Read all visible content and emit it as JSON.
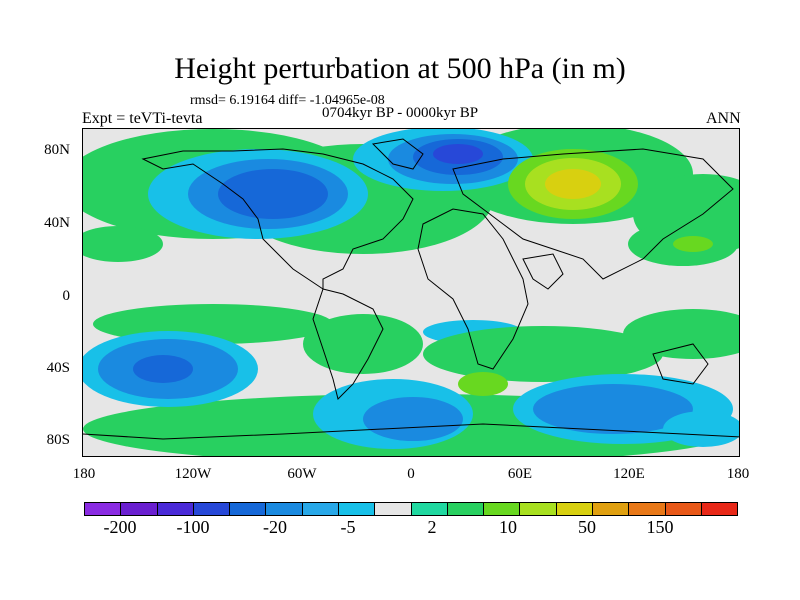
{
  "title": "Height perturbation at 500 hPa (in m)",
  "stats": "rmsd= 6.19164 diff= -1.04965e-08",
  "period": "0704kyr BP - 0000kyr BP",
  "experiment": "Expt = teVTi-tevta",
  "season": "ANN",
  "lat_labels": [
    "80N",
    "40N",
    "0",
    "40S",
    "80S"
  ],
  "lon_labels": [
    "180",
    "120W",
    "60W",
    "0",
    "60E",
    "120E",
    "180"
  ],
  "colorbar": {
    "labels": [
      "-200",
      "-100",
      "-20",
      "-5",
      "2",
      "10",
      "50",
      "150"
    ],
    "colors": [
      "#8a2be2",
      "#6a1fd0",
      "#4a2ad8",
      "#2748d8",
      "#1668d8",
      "#1a8ae0",
      "#28a8e8",
      "#18c0e8",
      "#e6e6e6",
      "#20d8a0",
      "#28d060",
      "#68d820",
      "#a8e020",
      "#d8d010",
      "#e0a010",
      "#e87818",
      "#e85818",
      "#e82818"
    ]
  },
  "colors": {
    "deep_blue": "#2748d8",
    "blue": "#1668d8",
    "light_blue": "#1a8ae0",
    "cyan": "#18c0e8",
    "neutral": "#e6e6e6",
    "teal": "#20d8a0",
    "green": "#28d060",
    "lime": "#68d820",
    "yellow_green": "#a8e020",
    "yellow": "#d8d010"
  }
}
